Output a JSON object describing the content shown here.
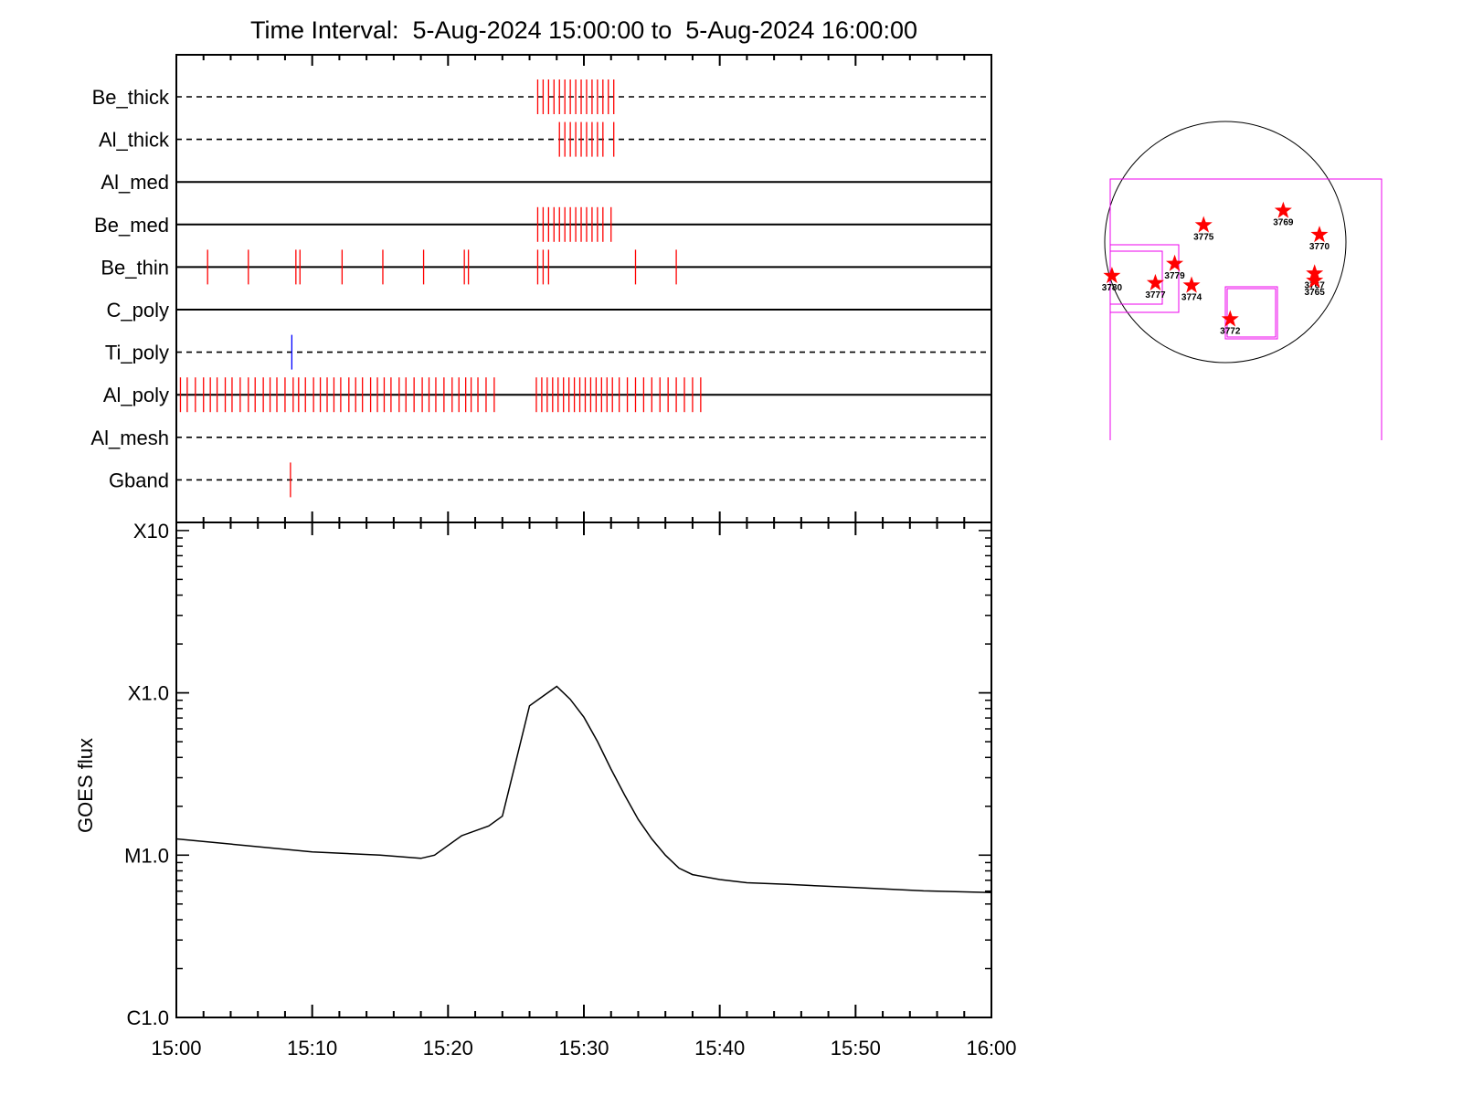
{
  "chart_data": {
    "type": "line",
    "title": "Time Interval:  5-Aug-2024 15:00:00 to  5-Aug-2024 16:00:00",
    "x_range_minutes": [
      0,
      60
    ],
    "x_tick_labels": [
      "15:00",
      "15:10",
      "15:20",
      "15:30",
      "15:40",
      "15:50",
      "16:00"
    ],
    "ylabel": "GOES flux",
    "y_log": true,
    "y_tick_labels": [
      {
        "label": "C1.0",
        "log10_flux": -6
      },
      {
        "label": "M1.0",
        "log10_flux": -5
      },
      {
        "label": "X1.0",
        "log10_flux": -4
      },
      {
        "label": "X10",
        "log10_flux": -3
      }
    ],
    "y_range_log10_flux": [
      -6,
      -2.95
    ],
    "goes_series": {
      "name": "",
      "x_minutes": [
        0,
        5,
        10,
        15,
        18,
        19,
        21,
        23,
        24,
        25,
        26,
        27,
        28,
        29,
        30,
        31,
        32,
        33,
        34,
        35,
        36,
        37,
        38,
        40,
        42,
        45,
        50,
        55,
        60
      ],
      "log10_flux": [
        -4.9,
        -4.94,
        -4.98,
        -5.0,
        -5.02,
        -5.0,
        -4.88,
        -4.82,
        -4.76,
        -4.42,
        -4.08,
        -4.02,
        -3.96,
        -4.04,
        -4.15,
        -4.3,
        -4.47,
        -4.63,
        -4.78,
        -4.9,
        -5.0,
        -5.08,
        -5.12,
        -5.15,
        -5.17,
        -5.18,
        -5.2,
        -5.22,
        -5.23
      ]
    },
    "attenuator_rows": [
      {
        "label": "Be_thick",
        "style": "dashed",
        "events_minutes": [
          26.6,
          27.0,
          27.4,
          27.8,
          28.2,
          28.6,
          29.0,
          29.4,
          29.8,
          30.2,
          30.6,
          31.0,
          31.4,
          31.8,
          32.2
        ],
        "event_color": "#ff0000"
      },
      {
        "label": "Al_thick",
        "style": "dashed",
        "events_minutes": [
          28.2,
          28.6,
          29.0,
          29.4,
          29.8,
          30.2,
          30.6,
          31.0,
          31.4,
          32.2
        ],
        "event_color": "#ff0000"
      },
      {
        "label": "Al_med",
        "style": "solid",
        "events_minutes": [],
        "event_color": "#ff0000"
      },
      {
        "label": "Be_med",
        "style": "solid",
        "events_minutes": [
          26.6,
          27.0,
          27.4,
          27.8,
          28.2,
          28.6,
          29.0,
          29.4,
          29.8,
          30.2,
          30.6,
          31.0,
          31.4,
          32.0
        ],
        "event_color": "#ff0000"
      },
      {
        "label": "Be_thin",
        "style": "solid",
        "events_minutes": [
          2.3,
          5.3,
          8.8,
          9.1,
          12.2,
          15.2,
          18.2,
          21.2,
          21.5,
          26.6,
          27.0,
          27.4,
          33.8,
          36.8
        ],
        "event_color": "#ff0000"
      },
      {
        "label": "C_poly",
        "style": "solid",
        "events_minutes": [],
        "event_color": "#ff0000"
      },
      {
        "label": "Ti_poly",
        "style": "dashed",
        "events_minutes": [
          8.5
        ],
        "event_color": "#0000ff"
      },
      {
        "label": "Al_poly",
        "style": "solid",
        "events_minutes": [
          0.3,
          0.8,
          1.4,
          2.0,
          2.5,
          3.0,
          3.6,
          4.1,
          4.7,
          5.3,
          5.8,
          6.4,
          6.9,
          7.4,
          8.0,
          8.6,
          9.0,
          9.5,
          10.1,
          10.6,
          11.1,
          11.6,
          12.1,
          12.7,
          13.2,
          13.7,
          14.3,
          14.8,
          15.3,
          15.8,
          16.4,
          16.9,
          17.5,
          18.1,
          18.6,
          19.1,
          19.7,
          20.3,
          20.8,
          21.3,
          21.7,
          22.2,
          22.8,
          23.4,
          26.5,
          26.9,
          27.3,
          27.7,
          28.1,
          28.5,
          28.9,
          29.3,
          29.7,
          30.1,
          30.5,
          30.9,
          31.3,
          31.7,
          32.1,
          32.6,
          33.2,
          33.8,
          34.4,
          35.0,
          35.6,
          36.2,
          36.8,
          37.4,
          38.0,
          38.6
        ],
        "event_color": "#ff0000"
      },
      {
        "label": "Al_mesh",
        "style": "dashed",
        "events_minutes": [],
        "event_color": "#ff0000"
      },
      {
        "label": "Gband",
        "style": "dashed",
        "events_minutes": [
          8.4
        ],
        "event_color": "#ff0000"
      }
    ],
    "active_regions": [
      {
        "id": "3775",
        "x": 0.41,
        "y": 0.43
      },
      {
        "id": "3769",
        "x": 0.74,
        "y": 0.37
      },
      {
        "id": "3770",
        "x": 0.89,
        "y": 0.47
      },
      {
        "id": "3779",
        "x": 0.29,
        "y": 0.59
      },
      {
        "id": "3780",
        "x": 0.03,
        "y": 0.64
      },
      {
        "id": "3777",
        "x": 0.21,
        "y": 0.67
      },
      {
        "id": "3774",
        "x": 0.36,
        "y": 0.68
      },
      {
        "id": "3767",
        "x": 0.87,
        "y": 0.63
      },
      {
        "id": "3765",
        "x": 0.87,
        "y": 0.66
      },
      {
        "id": "3772",
        "x": 0.52,
        "y": 0.82
      }
    ],
    "colors": {
      "attenuator_events": "#ff0000",
      "ti_poly_event": "#0000ff",
      "fov_boxes": "#ee00ee",
      "active_region_stars": "#ff0000",
      "lines": "#000000"
    },
    "grid": false,
    "legend": "none"
  }
}
